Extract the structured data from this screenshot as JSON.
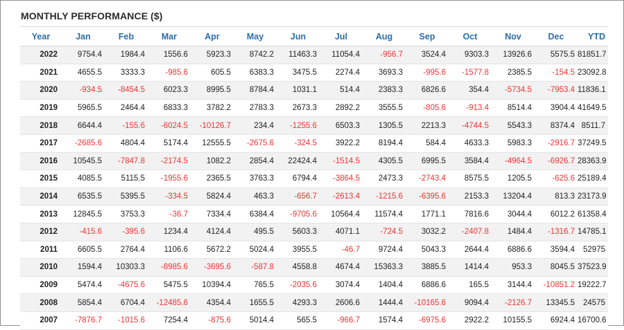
{
  "title": "MONTHLY PERFORMANCE ($)",
  "colors": {
    "header_text": "#2d6ca8",
    "negative": "#ee3333",
    "positive": "#222222",
    "stripe": "#f2f2f2"
  },
  "columns": [
    "Year",
    "Jan",
    "Feb",
    "Mar",
    "Apr",
    "May",
    "Jun",
    "Jul",
    "Aug",
    "Sep",
    "Oct",
    "Nov",
    "Dec",
    "YTD"
  ],
  "rows": [
    [
      "2022",
      "9754.4",
      "1984.4",
      "1556.6",
      "5923.3",
      "8742.2",
      "11463.3",
      "11054.4",
      "-956.7",
      "3524.4",
      "9303.3",
      "13926.6",
      "5575.5",
      "81851.7"
    ],
    [
      "2021",
      "4655.5",
      "3333.3",
      "-985.6",
      "605.5",
      "6383.3",
      "3475.5",
      "2274.4",
      "3693.3",
      "-995.6",
      "-1577.8",
      "2385.5",
      "-154.5",
      "23092.8"
    ],
    [
      "2020",
      "-934.5",
      "-8454.5",
      "6023.3",
      "8995.5",
      "8784.4",
      "1031.1",
      "514.4",
      "2383.3",
      "6826.6",
      "354.4",
      "-5734.5",
      "-7953.4",
      "11836.1"
    ],
    [
      "2019",
      "5965.5",
      "2464.4",
      "6833.3",
      "3782.2",
      "2783.3",
      "2673.3",
      "2892.2",
      "3555.5",
      "-805.6",
      "-913.4",
      "8514.4",
      "3904.4",
      "41649.5"
    ],
    [
      "2018",
      "6644.4",
      "-155.6",
      "-6024.5",
      "-10126.7",
      "234.4",
      "-1255.6",
      "6503.3",
      "1305.5",
      "2213.3",
      "-4744.5",
      "5543.3",
      "8374.4",
      "8511.7"
    ],
    [
      "2017",
      "-2685.6",
      "4804.4",
      "5174.4",
      "12555.5",
      "-2675.6",
      "-324.5",
      "3922.2",
      "8194.4",
      "584.4",
      "4633.3",
      "5983.3",
      "-2916.7",
      "37249.5"
    ],
    [
      "2016",
      "10545.5",
      "-7847.8",
      "-2174.5",
      "1082.2",
      "2854.4",
      "22424.4",
      "-1514.5",
      "4305.5",
      "6995.5",
      "3584.4",
      "-4964.5",
      "-6926.7",
      "28363.9"
    ],
    [
      "2015",
      "4085.5",
      "5115.5",
      "-1955.6",
      "2365.5",
      "3763.3",
      "6794.4",
      "-3864.5",
      "2473.3",
      "-2743.4",
      "8575.5",
      "1205.5",
      "-625.6",
      "25189.4"
    ],
    [
      "2014",
      "6535.5",
      "5395.5",
      "-334.5",
      "5824.4",
      "463.3",
      "-656.7",
      "-2613.4",
      "-1215.6",
      "-6395.6",
      "2153.3",
      "13204.4",
      "813.3",
      "23173.9"
    ],
    [
      "2013",
      "12845.5",
      "3753.3",
      "-36.7",
      "7334.4",
      "6384.4",
      "-9705.6",
      "10564.4",
      "11574.4",
      "1771.1",
      "7816.6",
      "3044.4",
      "6012.2",
      "61358.4"
    ],
    [
      "2012",
      "-415.6",
      "-395.6",
      "1234.4",
      "4124.4",
      "495.5",
      "5603.3",
      "4071.1",
      "-724.5",
      "3032.2",
      "-2407.8",
      "1484.4",
      "-1316.7",
      "14785.1"
    ],
    [
      "2011",
      "6605.5",
      "2764.4",
      "1106.6",
      "5672.2",
      "5024.4",
      "3955.5",
      "-46.7",
      "9724.4",
      "5043.3",
      "2644.4",
      "6886.6",
      "3594.4",
      "52975"
    ],
    [
      "2010",
      "1594.4",
      "10303.3",
      "-8985.6",
      "-3695.6",
      "-587.8",
      "4558.8",
      "4674.4",
      "15363.3",
      "3885.5",
      "1414.4",
      "953.3",
      "8045.5",
      "37523.9"
    ],
    [
      "2009",
      "5474.4",
      "-4675.6",
      "5475.5",
      "10394.4",
      "765.5",
      "-2035.6",
      "3074.4",
      "1404.4",
      "6886.6",
      "165.5",
      "3144.4",
      "-10851.2",
      "19222.7"
    ],
    [
      "2008",
      "5854.4",
      "6704.4",
      "-12485.6",
      "4354.4",
      "1655.5",
      "4293.3",
      "2606.6",
      "1444.4",
      "-10165.6",
      "9094.4",
      "-2126.7",
      "13345.5",
      "24575"
    ],
    [
      "2007",
      "-7876.7",
      "-1015.6",
      "7254.4",
      "-875.6",
      "5014.4",
      "565.5",
      "-966.7",
      "1574.4",
      "-6975.6",
      "2922.2",
      "10155.5",
      "6924.4",
      "16700.6"
    ]
  ]
}
